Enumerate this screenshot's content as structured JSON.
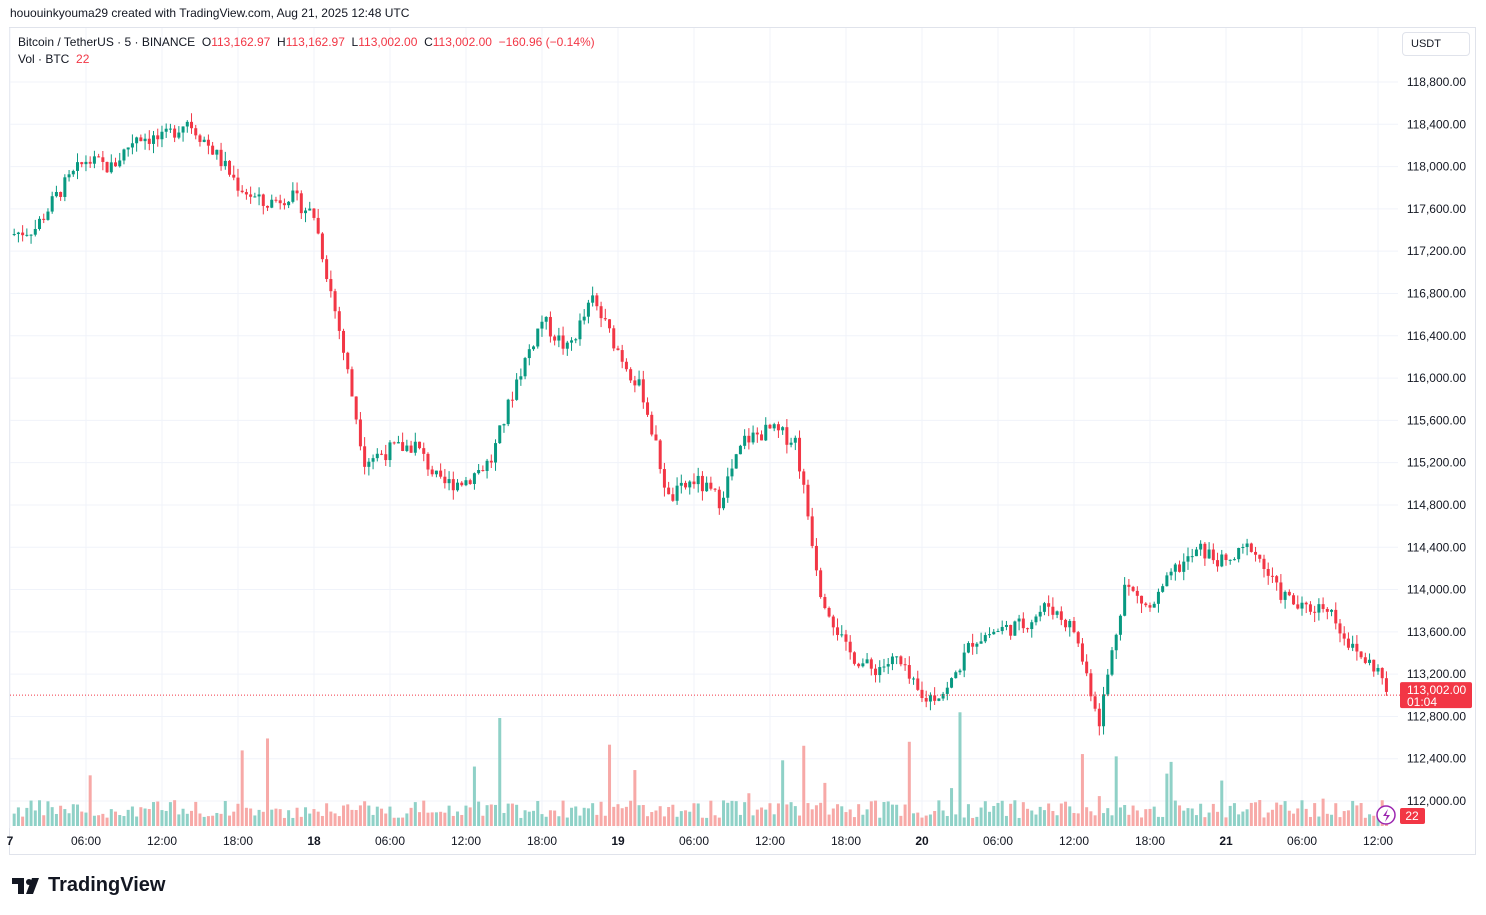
{
  "credit": "hououinkyouma29 created with TradingView.com, Aug 21, 2025 12:48 UTC",
  "legend": {
    "symbol": "Bitcoin / TetherUS · 5 · BINANCE",
    "o_label": "O",
    "o": "113,162.97",
    "h_label": "H",
    "h": "113,162.97",
    "l_label": "L",
    "l": "113,002.00",
    "c_label": "C",
    "c": "113,002.00",
    "change": "−160.96 (−0.14%)",
    "vol_label": "Vol · BTC",
    "vol": "22"
  },
  "currency": "USDT",
  "logo": "TradingView",
  "colors": {
    "up": "#089981",
    "down": "#f23645",
    "vol_up": "#8fd1c7",
    "vol_down": "#f7a9a7"
  },
  "chart_data": {
    "type": "candlestick",
    "interval": "5",
    "x_start": "Aug 17 00:00",
    "x_step_hours": 2,
    "closes": [
      117353,
      117419,
      117779,
      118062,
      117987,
      118299,
      118251,
      118441,
      118157,
      117826,
      117637,
      117731,
      117542,
      116455,
      115225,
      115320,
      115367,
      114989,
      115036,
      115225,
      115982,
      116549,
      116266,
      116738,
      116266,
      115840,
      114847,
      115036,
      114847,
      115414,
      115509,
      115414,
      113996,
      113428,
      113239,
      113334,
      112956,
      113050,
      113523,
      113618,
      113665,
      113854,
      113618,
      112767,
      114043,
      113807,
      114185,
      114374,
      114232,
      114421,
      113996,
      113807,
      113854,
      113428,
      113239
    ],
    "last_price": 113002,
    "last_price_label": "113,002.00",
    "countdown": "01:04",
    "last_volume_label": "22",
    "ylim": [
      111800,
      119100
    ],
    "y_ticks": [
      "118,800.00",
      "118,400.00",
      "118,000.00",
      "117,600.00",
      "117,200.00",
      "116,800.00",
      "116,400.00",
      "116,000.00",
      "115,600.00",
      "115,200.00",
      "114,800.00",
      "114,400.00",
      "114,000.00",
      "113,600.00",
      "113,200.00",
      "112,800.00",
      "112,400.00",
      "112,000.00"
    ],
    "x_ticks": [
      "7",
      "06:00",
      "12:00",
      "18:00",
      "18",
      "06:00",
      "12:00",
      "18:00",
      "19",
      "06:00",
      "12:00",
      "18:00",
      "20",
      "06:00",
      "12:00",
      "18:00",
      "21",
      "06:00",
      "12:00"
    ],
    "grid": true
  }
}
